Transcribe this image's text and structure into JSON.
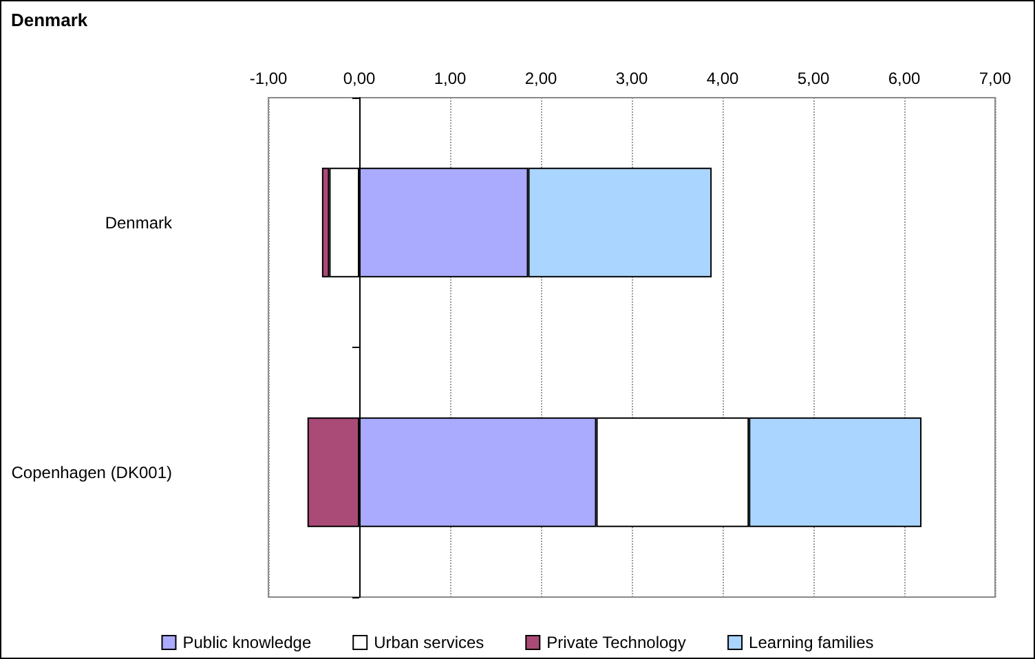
{
  "chart_data": {
    "type": "bar",
    "title": "Denmark",
    "orientation": "horizontal",
    "stacked": true,
    "categories": [
      "Denmark",
      "Copenhagen (DK001)"
    ],
    "series": [
      {
        "name": "Public knowledge",
        "color": "#aaaaff",
        "values": [
          1.86,
          2.61
        ]
      },
      {
        "name": "Urban services",
        "color": "#ffffff",
        "values": [
          -0.33,
          1.68
        ]
      },
      {
        "name": "Private Technology",
        "color": "#aa4a77",
        "values": [
          -0.08,
          -0.57
        ]
      },
      {
        "name": "Learning families",
        "color": "#aad5ff",
        "values": [
          2.02,
          1.9
        ]
      }
    ],
    "xlim": [
      -1,
      7
    ],
    "xticks": [
      {
        "value": -1,
        "label": "-1,00"
      },
      {
        "value": 0,
        "label": "0,00"
      },
      {
        "value": 1,
        "label": "1,00"
      },
      {
        "value": 2,
        "label": "2,00"
      },
      {
        "value": 3,
        "label": "3,00"
      },
      {
        "value": 4,
        "label": "4,00"
      },
      {
        "value": 5,
        "label": "5,00"
      },
      {
        "value": 6,
        "label": "6,00"
      },
      {
        "value": 7,
        "label": "7,00"
      }
    ],
    "grid": "x",
    "legend": "bottom"
  }
}
